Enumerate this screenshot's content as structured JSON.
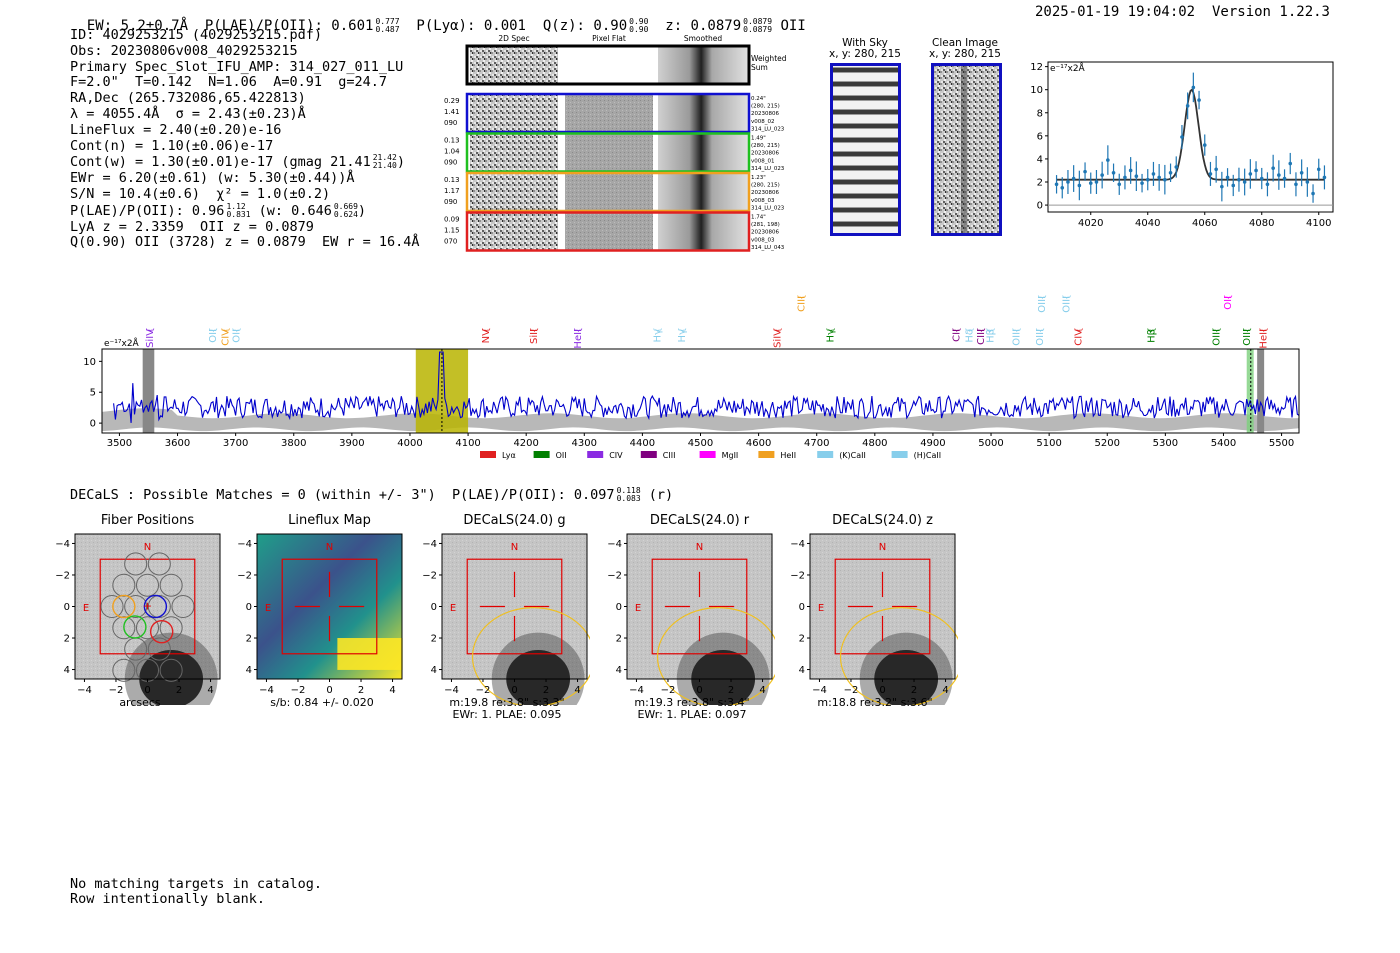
{
  "header": {
    "ew": "EW: 5.2±0.7Å",
    "plae_label": "P(LAE)/P(OII): 0.601",
    "plae_hi": "0.777",
    "plae_lo": "0.487",
    "plya": "P(Lyα): 0.001",
    "qz_label": "Q(z): 0.90",
    "qz_hi": "0.90",
    "qz_lo": "0.90",
    "z_label": "z: 0.0879",
    "z_hi": "0.0879",
    "z_lo": "0.0879",
    "line": "OII",
    "timestamp": "2025-01-19 19:04:02",
    "version": "Version 1.22.3"
  },
  "info": {
    "id": "ID: 4029253215 (4029253215.pdf)",
    "obs": "Obs: 20230806v008_4029253215",
    "primary": "Primary Spec_Slot_IFU_AMP: 314_027_011_LU",
    "fwhm": "F=2.0\"  T=0.142  N=1.06  A=0.91  g=24.7",
    "radec": "RA,Dec (265.732086,65.422813)",
    "lambda": "λ = 4055.4Å  σ = 2.43(±0.23)Å",
    "lineflux": "LineFlux = 2.40(±0.20)e-16",
    "contn": "Cont(n) = 1.10(±0.06)e-17",
    "contw": "Cont(w) = 1.30(±0.01)e-17 (gmag 21.41",
    "contw_hi": "21.42",
    "contw_lo": "21.40",
    "contw_end": ")",
    "ewr": "EWr = 6.20(±0.61) (w: 5.30(±0.44))Å",
    "sn": "S/N = 10.4(±0.6)  χ² = 1.0(±0.2)",
    "plae": "P(LAE)/P(OII): 0.96",
    "plae_hi": "1.12",
    "plae_lo": "0.831",
    "plae_w": "(w: 0.646",
    "plae_w_hi": "0.669",
    "plae_w_lo": "0.624",
    "plae_end": ")",
    "lya": "LyA z = 2.3359  OII z = 0.0879",
    "q": "Q(0.90) OII (3728) z = 0.0879  EW r = 16.4Å"
  },
  "cutouts": {
    "col_titles": [
      "2D Spec",
      "Pixel Flat",
      "Smoothed"
    ],
    "weighted": "Weighted Sum",
    "rows": [
      {
        "l1": "0.29",
        "l2": "1.41",
        "l3": "090",
        "r1": "0.24\"",
        "r2": "(280, 215)",
        "r3": "20230806",
        "r4": "v008_02",
        "r5": "314_LU_023",
        "color": "#1010d0"
      },
      {
        "l1": "0.13",
        "l2": "1.04",
        "l3": "090",
        "r1": "1.49\"",
        "r2": "(280, 215)",
        "r3": "20230806",
        "r4": "v008_01",
        "r5": "314_LU_023",
        "color": "#20c020"
      },
      {
        "l1": "0.13",
        "l2": "1.17",
        "l3": "090",
        "r1": "1.23\"",
        "r2": "(280, 215)",
        "r3": "20230806",
        "r4": "v008_03",
        "r5": "314_LU_023",
        "color": "#f0a020"
      },
      {
        "l1": "0.09",
        "l2": "1.15",
        "l3": "070",
        "r1": "1.74\"",
        "r2": "(281, 198)",
        "r3": "20230806",
        "r4": "v008_03",
        "r5": "314_LU_043",
        "color": "#e02020"
      }
    ],
    "with_sky": "With Sky",
    "with_sky_xy": "x, y: 280, 215",
    "clean": "Clean Image",
    "clean_xy": "x, y: 280, 215"
  },
  "line_fit": {
    "type": "scatter",
    "unit": "e⁻¹⁷x2Å",
    "x_ticks": [
      "4020",
      "4040",
      "4060",
      "4080",
      "4100"
    ],
    "y_ticks": [
      "0",
      "2",
      "4",
      "6",
      "8",
      "10",
      "12"
    ],
    "xlim": [
      4005,
      4105
    ],
    "ylim": [
      -0.6,
      12.4
    ],
    "center": 4055.4,
    "sigma": 2.43,
    "amplitude": 7.8,
    "continuum": 2.2,
    "x": [
      4008,
      4010,
      4012,
      4014,
      4016,
      4018,
      4020,
      4022,
      4024,
      4026,
      4028,
      4030,
      4032,
      4034,
      4036,
      4038,
      4040,
      4042,
      4044,
      4046,
      4048,
      4050,
      4052,
      4054,
      4056,
      4058,
      4060,
      4062,
      4064,
      4066,
      4068,
      4070,
      4072,
      4074,
      4076,
      4078,
      4080,
      4082,
      4084,
      4086,
      4088,
      4090,
      4092,
      4094,
      4096,
      4098,
      4100,
      4102
    ],
    "y": [
      1.8,
      1.5,
      2.0,
      2.3,
      1.7,
      2.9,
      1.9,
      2.0,
      2.6,
      3.9,
      2.8,
      1.8,
      2.4,
      3.0,
      2.5,
      1.9,
      2.2,
      2.7,
      2.4,
      2.2,
      2.8,
      3.3,
      5.9,
      8.6,
      10.2,
      9.1,
      5.2,
      2.7,
      3.1,
      1.6,
      2.4,
      1.7,
      2.2,
      2.0,
      2.7,
      3.0,
      2.3,
      1.8,
      3.2,
      2.6,
      2.3,
      3.6,
      1.8,
      2.8,
      2.0,
      1.0,
      3.1,
      2.4
    ]
  },
  "spectrum": {
    "type": "line",
    "unit": "e⁻¹⁷x2Å",
    "xlim": [
      3470,
      5530
    ],
    "ylim": [
      -1.6,
      12
    ],
    "x_ticks": [
      "3500",
      "3600",
      "3700",
      "3800",
      "3900",
      "4000",
      "4100",
      "4200",
      "4300",
      "4400",
      "4500",
      "4600",
      "4700",
      "4800",
      "4900",
      "5000",
      "5100",
      "5200",
      "5300",
      "5400",
      "5500"
    ],
    "y_ticks": [
      "0",
      "5",
      "10"
    ],
    "highlight": {
      "from": 4010,
      "to": 4100
    },
    "line_markers": [
      {
        "label": "SiIV",
        "wave": 3552,
        "tier": 0,
        "color": "#8a2be2"
      },
      {
        "label": "OII",
        "wave": 3660,
        "tier": 0,
        "color": "#87ceeb"
      },
      {
        "label": "CIV",
        "wave": 3682,
        "tier": 0,
        "color": "#f0a020"
      },
      {
        "label": "OII",
        "wave": 3701,
        "tier": 0,
        "color": "#87ceeb"
      },
      {
        "label": "NV",
        "wave": 4130,
        "tier": 0,
        "color": "#e02020"
      },
      {
        "label": "SiII",
        "wave": 4213,
        "tier": 0,
        "color": "#e02020"
      },
      {
        "label": "HeII",
        "wave": 4288,
        "tier": 0,
        "color": "#8a2be2"
      },
      {
        "label": "Hγ",
        "wave": 4425,
        "tier": 0,
        "color": "#87ceeb"
      },
      {
        "label": "Hγ",
        "wave": 4467,
        "tier": 0,
        "color": "#87ceeb"
      },
      {
        "label": "SiIV",
        "wave": 4632,
        "tier": 0,
        "color": "#e02020"
      },
      {
        "label": "CIII",
        "wave": 4673,
        "tier": 1,
        "color": "#f0a020"
      },
      {
        "label": "Hγ",
        "wave": 4723,
        "tier": 0,
        "color": "#008000"
      },
      {
        "label": "CII",
        "wave": 4940,
        "tier": 0,
        "color": "#800080"
      },
      {
        "label": "Hδ",
        "wave": 4962,
        "tier": 0,
        "color": "#87ceeb"
      },
      {
        "label": "CIII",
        "wave": 4982,
        "tier": 0,
        "color": "#800080"
      },
      {
        "label": "Hβ",
        "wave": 4998,
        "tier": 0,
        "color": "#87ceeb"
      },
      {
        "label": "OIII",
        "wave": 5043,
        "tier": 0,
        "color": "#87ceeb"
      },
      {
        "label": "OIII",
        "wave": 5083,
        "tier": 0,
        "color": "#87ceeb"
      },
      {
        "label": "OIII",
        "wave": 5087,
        "tier": 1,
        "color": "#87ceeb"
      },
      {
        "label": "OIII",
        "wave": 5129,
        "tier": 1,
        "color": "#87ceeb"
      },
      {
        "label": "CIV",
        "wave": 5150,
        "tier": 0,
        "color": "#e02020"
      },
      {
        "label": "Hβ",
        "wave": 5275,
        "tier": 0,
        "color": "#008000"
      },
      {
        "label": "OIII",
        "wave": 5387,
        "tier": 0,
        "color": "#008000"
      },
      {
        "label": "OII",
        "wave": 5407,
        "tier": 1,
        "color": "#ff00ff"
      },
      {
        "label": "OIII",
        "wave": 5440,
        "tier": 0,
        "color": "#008000"
      },
      {
        "label": "HeII",
        "wave": 5468,
        "tier": 0,
        "color": "#e02020"
      }
    ],
    "legend": [
      {
        "label": "Lyα",
        "color": "#e02020"
      },
      {
        "label": "OII",
        "color": "#008000"
      },
      {
        "label": "CIV",
        "color": "#8a2be2"
      },
      {
        "label": "CIII",
        "color": "#800080"
      },
      {
        "label": "MgII",
        "color": "#ff00ff"
      },
      {
        "label": "HeII",
        "color": "#f0a020"
      },
      {
        "label": "(K)CaII",
        "color": "#87ceeb"
      },
      {
        "label": "(H)CaII",
        "color": "#87ceeb"
      }
    ]
  },
  "decals": {
    "summary": "DECaLS : Possible Matches = 0 (within +/- 3\")  P(LAE)/P(OII): 0.097",
    "hi": "0.118",
    "lo": "0.083",
    "band_tag": "(r)",
    "ticks": [
      "−4",
      "−2",
      "0",
      "2",
      "4"
    ],
    "north": "N",
    "east": "E",
    "panels": [
      {
        "title": "Fiber Positions",
        "cap1": "arcsecs",
        "cap2": ""
      },
      {
        "title": "Lineflux Map",
        "cap1": "s/b: 0.84 +/- 0.020",
        "cap2": ""
      },
      {
        "title": "DECaLS(24.0) g",
        "cap1": "m:19.8  re:3.8\"  s:3.3\"",
        "cap2": "EWr: 1. PLAE: 0.095"
      },
      {
        "title": "DECaLS(24.0) r",
        "cap1": "m:19.3  re:3.8\"  s:3.4\"",
        "cap2": "EWr: 1. PLAE: 0.097"
      },
      {
        "title": "DECaLS(24.0) z",
        "cap1": "m:18.8  re:3.2\"  s:3.6\"",
        "cap2": ""
      }
    ]
  },
  "footer": {
    "line1": "No matching targets in catalog.",
    "line2": "Row intentionally blank."
  }
}
